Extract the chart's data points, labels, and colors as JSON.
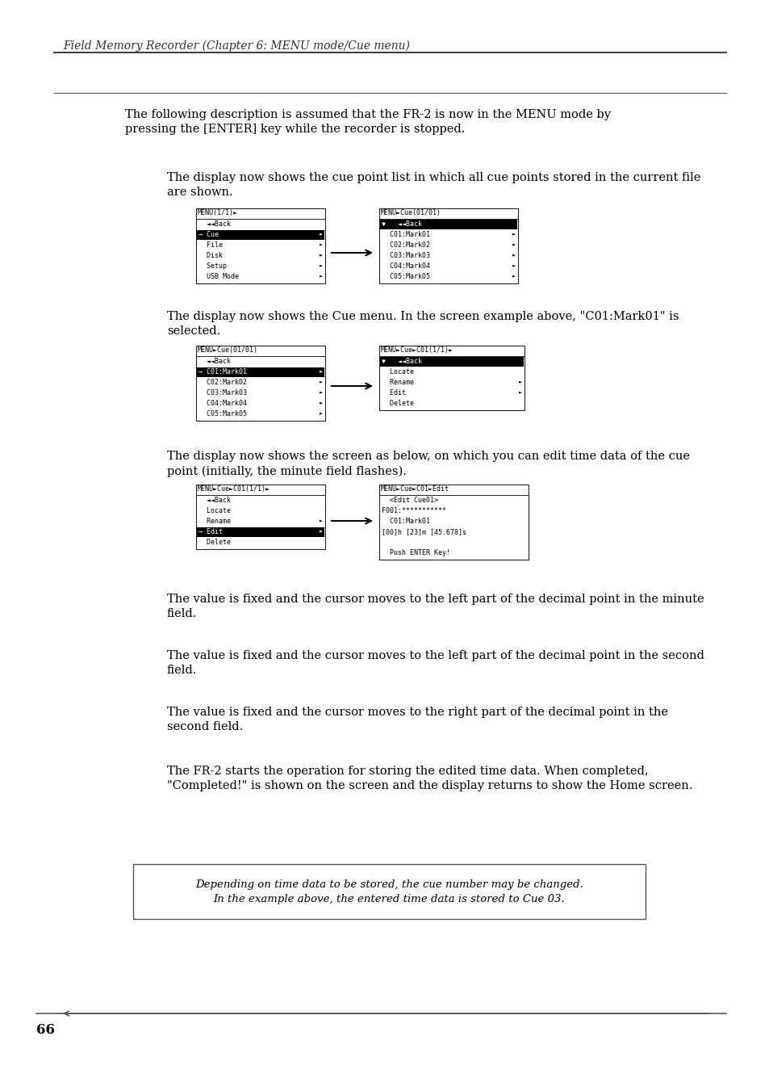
{
  "page_title": "Field Memory Recorder (Chapter 6: MENU mode/Cue menu)",
  "page_number": "66",
  "bg_color": "#ffffff",
  "text_color": "#000000",
  "line_color": "#555555",
  "intro_text": "The following description is assumed that the FR-2 is now in the MENU mode by\npressing the [ENTER] key while the recorder is stopped.",
  "section1_desc": "The display now shows the cue point list in which all cue points stored in the current file\nare shown.",
  "section2_desc": "The display now shows the Cue menu. In the screen example above, \"C01:Mark01\" is\nselected.",
  "section3_desc": "The display now shows the screen as below, on which you can edit time data of the cue\npoint (initially, the minute field flashes).",
  "step_texts": [
    "The value is fixed and the cursor moves to the left part of the decimal point in the minute\nfield.",
    "The value is fixed and the cursor moves to the left part of the decimal point in the second\nfield.",
    "The value is fixed and the cursor moves to the right part of the decimal point in the\nsecond field.",
    "The FR-2 starts the operation for storing the edited time data. When completed,\n\"Completed!\" is shown on the screen and the display returns to show the Home screen."
  ],
  "note_text": "Depending on time data to be stored, the cue number may be changed.\nIn the example above, the entered time data is stored to Cue 03.",
  "screen1_left": {
    "title": "MENU(1/1)►",
    "items": [
      {
        "text": "  ◄◄Back",
        "sel": false,
        "arrow": false
      },
      {
        "text": "Cue",
        "sel": true,
        "arrow": true,
        "prefix": "→ "
      },
      {
        "text": "  File",
        "sel": false,
        "arrow": true
      },
      {
        "text": "  Disk",
        "sel": false,
        "arrow": true
      },
      {
        "text": "  Setup",
        "sel": false,
        "arrow": true
      },
      {
        "text": "  USB Mode",
        "sel": false,
        "arrow": true
      }
    ]
  },
  "screen1_right": {
    "title": "MENU►Cue(01/01)",
    "selected_header": true,
    "items": [
      {
        "text": "  ◄◄Back",
        "sel": true,
        "arrow": false,
        "prefix": "▼ "
      },
      {
        "text": "  C01:Mark01",
        "sel": false,
        "arrow": true
      },
      {
        "text": "  C02:Mark02",
        "sel": false,
        "arrow": true
      },
      {
        "text": "  C03:Mark03",
        "sel": false,
        "arrow": true
      },
      {
        "text": "  C04:Mark04",
        "sel": false,
        "arrow": true
      },
      {
        "text": "  C05:Mark05",
        "sel": false,
        "arrow": true
      }
    ]
  },
  "screen2_left": {
    "title": "MENU►Cue(01/01)",
    "items": [
      {
        "text": "  ◄◄Back",
        "sel": false,
        "arrow": false
      },
      {
        "text": "C01:Mark01",
        "sel": true,
        "arrow": true,
        "prefix": "→ "
      },
      {
        "text": "  C02:Mark02",
        "sel": false,
        "arrow": true
      },
      {
        "text": "  C03:Mark03",
        "sel": false,
        "arrow": true
      },
      {
        "text": "  C04:Mark04",
        "sel": false,
        "arrow": true
      },
      {
        "text": "  C05:Mark05",
        "sel": false,
        "arrow": true
      }
    ]
  },
  "screen2_right": {
    "title": "MENU►Cue►C01(1/1)►",
    "selected_header": true,
    "items": [
      {
        "text": "  ◄◄Back",
        "sel": true,
        "arrow": false,
        "prefix": "▼ "
      },
      {
        "text": "  Locate",
        "sel": false,
        "arrow": false
      },
      {
        "text": "  Rename",
        "sel": false,
        "arrow": true
      },
      {
        "text": "  Edit",
        "sel": false,
        "arrow": true
      },
      {
        "text": "  Delete",
        "sel": false,
        "arrow": false
      }
    ]
  },
  "screen3_left": {
    "title": "MENU►Cue►C01(1/1)►",
    "items": [
      {
        "text": "  ◄◄Back",
        "sel": false,
        "arrow": false
      },
      {
        "text": "  Locate",
        "sel": false,
        "arrow": false
      },
      {
        "text": "  Rename",
        "sel": false,
        "arrow": true
      },
      {
        "text": "Edit",
        "sel": true,
        "arrow": true,
        "prefix": "→ "
      },
      {
        "text": "  Delete",
        "sel": false,
        "arrow": false
      }
    ]
  },
  "screen3_right": {
    "title": "MENU►Cue►C01►Edit",
    "selected_header": false,
    "items": [
      {
        "text": "  <Edit Cue01>",
        "sel": false,
        "arrow": false
      },
      {
        "text": "F001:***********",
        "sel": false,
        "arrow": false
      },
      {
        "text": "  C01:Mark01",
        "sel": false,
        "arrow": false
      },
      {
        "text": "[00]h [23]m [45.678]s",
        "sel": false,
        "arrow": false
      },
      {
        "text": "",
        "sel": false,
        "arrow": false
      },
      {
        "text": "  Push ENTER Key!",
        "sel": false,
        "arrow": false
      }
    ]
  }
}
